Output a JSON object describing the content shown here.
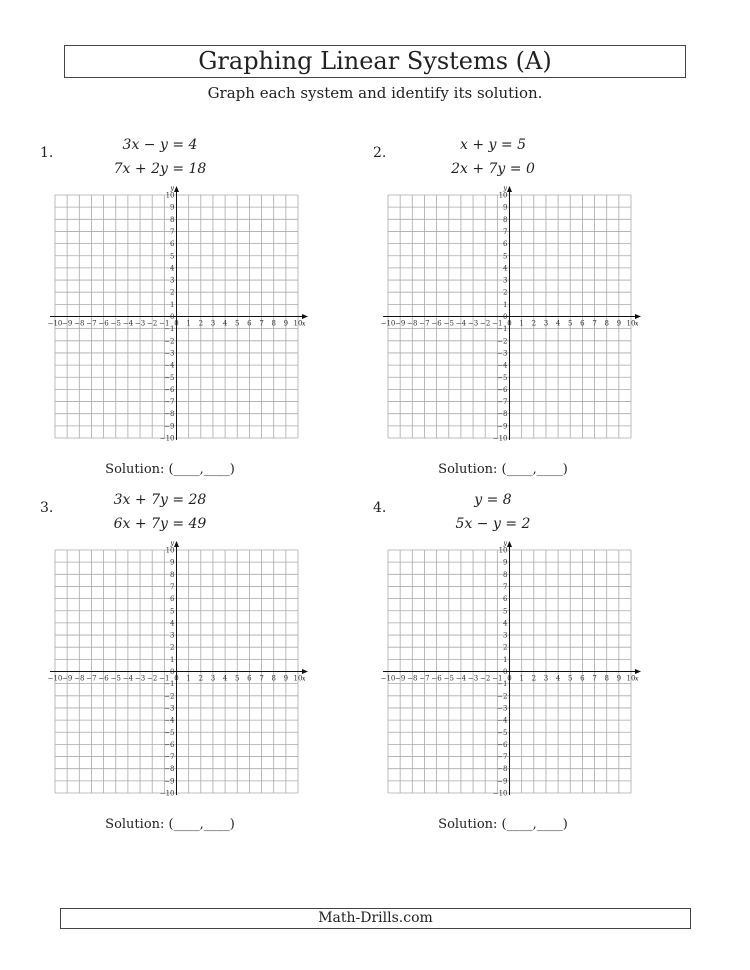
{
  "title": "Graphing Linear Systems (A)",
  "subtitle": "Graph each system and identify its solution.",
  "problems": [
    {
      "number": "1.",
      "eq1": "3x − y = 4",
      "eq2": "7x + 2y = 18",
      "solution": "Solution: (____,____)"
    },
    {
      "number": "2.",
      "eq1": "x + y = 5",
      "eq2": "2x + 7y = 0",
      "solution": "Solution: (____,____)"
    },
    {
      "number": "3.",
      "eq1": "3x + 7y = 28",
      "eq2": "6x + 7y = 49",
      "solution": "Solution: (____,____)"
    },
    {
      "number": "4.",
      "eq1": "y = 8",
      "eq2": "5x − y = 2",
      "solution": "Solution: (____,____)"
    }
  ],
  "grid": {
    "xmin": -10,
    "xmax": 10,
    "ymin": -10,
    "ymax": 10,
    "xlabel": "x",
    "ylabel": "y"
  },
  "footer": "Math-Drills.com"
}
